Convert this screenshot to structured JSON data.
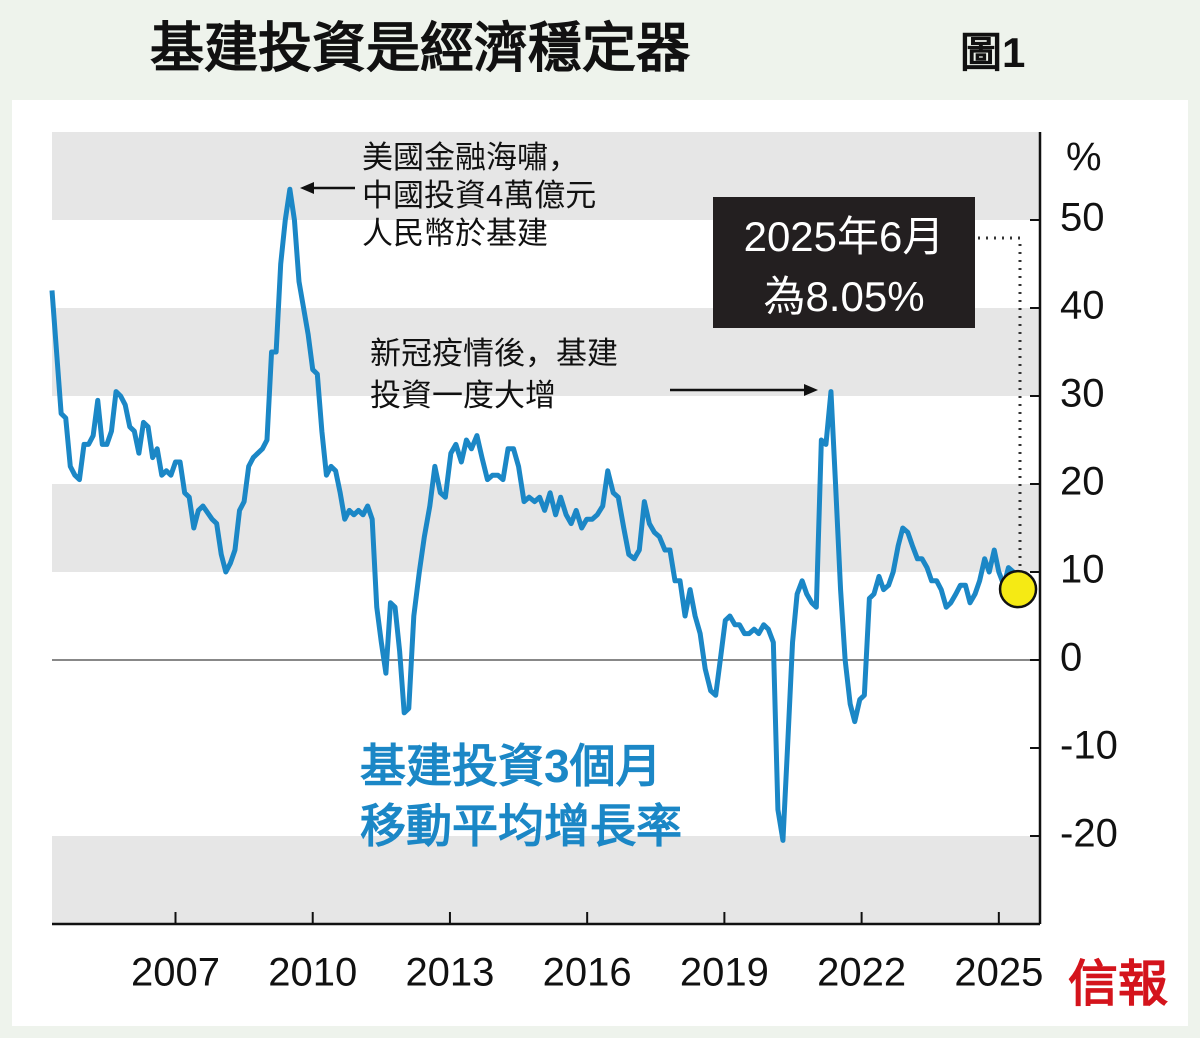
{
  "chart_data": {
    "type": "line",
    "title": "基建投資是經濟穩定器",
    "figure_label": "圖1",
    "y_unit": "%",
    "source": "信報",
    "line_label": [
      "基建投資3個月",
      "移動平均增長率"
    ],
    "color": "#1b87c6",
    "end_color": "#2fa84f",
    "end_marker_color": "#f5ea14",
    "xlim": [
      2004.3,
      2025.9
    ],
    "xticks": [
      2007,
      2010,
      2013,
      2016,
      2019,
      2022,
      2025
    ],
    "ylim": [
      -30,
      60
    ],
    "yticks": [
      -20,
      -10,
      0,
      10,
      20,
      30,
      40,
      50
    ],
    "annotations": [
      {
        "lines": [
          "美國金融海嘯，",
          "中國投資4萬億元",
          "人民幣於基建"
        ]
      },
      {
        "lines": [
          "新冠疫情後，基建",
          "投資一度大增"
        ]
      },
      {
        "lines": [
          "2025年6月",
          "為8.05%"
        ]
      }
    ],
    "x": [
      2004.3,
      2004.4,
      2004.5,
      2004.6,
      2004.7,
      2004.8,
      2004.9,
      2005,
      2005.1,
      2005.2,
      2005.3,
      2005.4,
      2005.5,
      2005.6,
      2005.7,
      2005.8,
      2005.9,
      2006,
      2006.1,
      2006.2,
      2006.3,
      2006.4,
      2006.5,
      2006.6,
      2006.7,
      2006.8,
      2006.9,
      2007,
      2007.1,
      2007.2,
      2007.3,
      2007.4,
      2007.5,
      2007.6,
      2007.8,
      2007.9,
      2008,
      2008.1,
      2008.2,
      2008.3,
      2008.4,
      2008.5,
      2008.6,
      2008.7,
      2008.9,
      2009,
      2009.1,
      2009.2,
      2009.3,
      2009.4,
      2009.5,
      2009.6,
      2009.7,
      2009.8,
      2009.9,
      2010,
      2010.1,
      2010.2,
      2010.3,
      2010.4,
      2010.5,
      2010.6,
      2010.7,
      2010.8,
      2010.9,
      2011,
      2011.1,
      2011.2,
      2011.3,
      2011.4,
      2011.5,
      2011.6,
      2011.7,
      2011.8,
      2011.9,
      2012,
      2012.1,
      2012.21,
      2012.33,
      2012.44,
      2012.56,
      2012.67,
      2012.79,
      2012.9,
      2013.02,
      2013.13,
      2013.25,
      2013.36,
      2013.47,
      2013.59,
      2013.7,
      2013.82,
      2013.93,
      2014.05,
      2014.16,
      2014.27,
      2014.39,
      2014.5,
      2014.62,
      2014.73,
      2014.85,
      2014.96,
      2015.07,
      2015.19,
      2015.31,
      2015.42,
      2015.54,
      2015.65,
      2015.76,
      2015.88,
      2015.99,
      2016.11,
      2016.22,
      2016.34,
      2016.45,
      2016.57,
      2016.68,
      2016.8,
      2016.91,
      2017.03,
      2017.14,
      2017.25,
      2017.36,
      2017.47,
      2017.58,
      2017.7,
      2017.81,
      2017.92,
      2018.03,
      2018.14,
      2018.25,
      2018.36,
      2018.47,
      2018.58,
      2018.7,
      2018.81,
      2018.91,
      2019.02,
      2019.12,
      2019.23,
      2019.33,
      2019.44,
      2019.54,
      2019.65,
      2019.75,
      2019.86,
      2019.96,
      2020.07,
      2020.17,
      2020.28,
      2020.38,
      2020.49,
      2020.59,
      2020.7,
      2020.8,
      2020.91,
      2021.01,
      2021.12,
      2021.22,
      2021.33,
      2021.43,
      2021.54,
      2021.64,
      2021.75,
      2021.85,
      2021.96,
      2022.06,
      2022.17,
      2022.27,
      2022.38,
      2022.48,
      2022.59,
      2022.69,
      2022.8,
      2022.9,
      2023.01,
      2023.11,
      2023.22,
      2023.32,
      2023.43,
      2023.53,
      2023.64,
      2023.74,
      2023.85,
      2023.95,
      2024.06,
      2024.16,
      2024.27,
      2024.37,
      2024.48,
      2024.58,
      2024.69,
      2024.79,
      2024.9,
      2025,
      2025.11,
      2025.21,
      2025.32,
      2025.42
    ],
    "values": [
      42,
      35,
      28,
      27.5,
      22,
      21,
      20.5,
      24.5,
      24.5,
      25.5,
      29.5,
      24.5,
      24.5,
      26,
      30.5,
      30,
      29,
      26.5,
      26,
      23.5,
      27,
      26.5,
      23,
      24,
      21,
      21.5,
      21,
      22.5,
      22.5,
      19,
      18.5,
      15,
      17,
      17.5,
      16,
      15.5,
      12,
      10,
      11,
      12.5,
      17,
      18,
      22,
      23,
      24,
      25,
      35,
      35,
      45,
      50,
      53.5,
      50,
      43,
      40,
      37,
      33,
      32.5,
      26,
      21,
      22,
      21.5,
      19,
      16,
      17,
      16.5,
      17,
      16.5,
      17.5,
      16,
      6,
      2,
      -1.5,
      6.5,
      6,
      1,
      -6,
      -5.5,
      5,
      10,
      14,
      17.5,
      22,
      19,
      18.5,
      23.5,
      24.5,
      22.5,
      25,
      24,
      25.5,
      23,
      20.5,
      21,
      21,
      20.5,
      24,
      24,
      22,
      18,
      18.5,
      18,
      18.5,
      17,
      19,
      16.5,
      18.5,
      16.5,
      15.5,
      17,
      15,
      16,
      16,
      16.5,
      17.5,
      21.5,
      19,
      18.5,
      15,
      12,
      11.5,
      12.5,
      18,
      15.5,
      14.5,
      14,
      12.5,
      12.5,
      9,
      9,
      5,
      8,
      5,
      3,
      -1,
      -3.5,
      -4,
      0,
      4.5,
      5,
      4,
      4,
      3,
      3,
      3.5,
      3,
      4,
      3.5,
      2,
      -17,
      -20.5,
      -10,
      2,
      7.5,
      9,
      7.5,
      6.5,
      6,
      25,
      24.5,
      30.5,
      20,
      8,
      0,
      -5,
      -7,
      -4.5,
      -4,
      7,
      7.5,
      9.5,
      8,
      8.5,
      10,
      13,
      15,
      14.5,
      13,
      11.5,
      11.5,
      10.5,
      9,
      9,
      8,
      6,
      6.5,
      7.5,
      8.5,
      8.5,
      6.5,
      7.5,
      9,
      11.5,
      10,
      12.5,
      10,
      8.5,
      10.5,
      10,
      8.05
    ]
  }
}
